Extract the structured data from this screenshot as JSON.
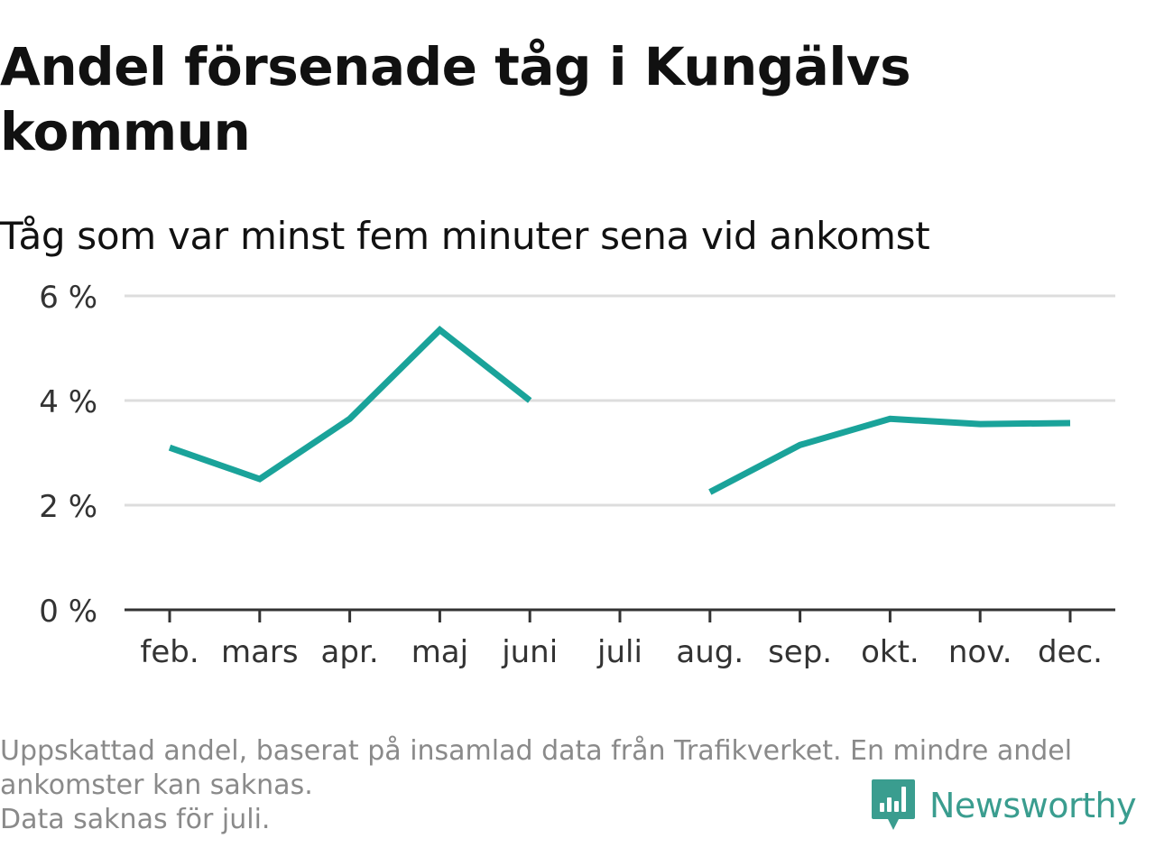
{
  "header": {
    "title": "Andel försenade tåg i Kungälvs kommun",
    "subtitle": "Tåg som var minst fem minuter sena vid ankomst"
  },
  "chart_data": {
    "type": "line",
    "x": [
      "feb.",
      "mars",
      "apr.",
      "maj",
      "juni",
      "juli",
      "aug.",
      "sep.",
      "okt.",
      "nov.",
      "dec."
    ],
    "series": [
      {
        "values": [
          3.1,
          2.5,
          3.65,
          5.35,
          4.0,
          null,
          2.25,
          3.15,
          3.65,
          3.55,
          3.57
        ],
        "color": "#1aa39a"
      }
    ],
    "ylim": [
      0,
      6
    ],
    "yticks": [
      0,
      2,
      4,
      6
    ],
    "ytick_labels": [
      "0 %",
      "2 %",
      "4 %",
      "6 %"
    ],
    "xlabel": "",
    "ylabel": "",
    "grid": true,
    "legend": "none"
  },
  "footer": {
    "notes": [
      "Uppskattad andel, baserat på insamlad data från Trafikverket. En mindre andel",
      "ankomster kan saknas.",
      "Data saknas för juli."
    ],
    "brand": "Newsworthy",
    "brand_icon": "newsworthy-logo-icon",
    "brand_color": "#3a9d8f"
  }
}
